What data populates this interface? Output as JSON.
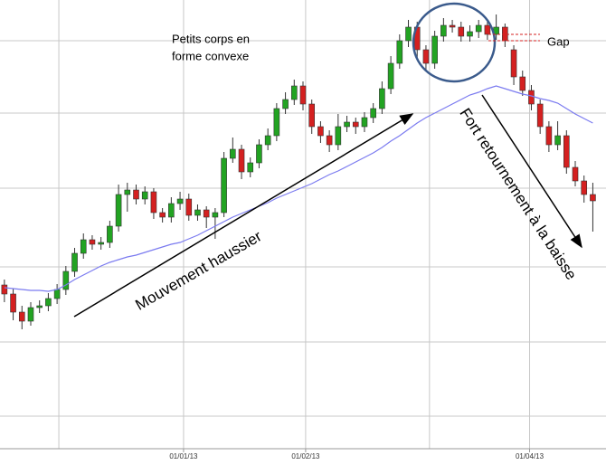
{
  "chart_data": {
    "type": "candlestick",
    "up_color": "#22a322",
    "down_color": "#d42020",
    "ma_color": "#7b7bf0",
    "xlim": [
      -0.5,
      68.5
    ],
    "ylim": [
      0,
      514
    ],
    "xticks": [
      {
        "value": 20.4,
        "label": "01/01/13"
      },
      {
        "value": 34.3,
        "label": "01/02/13"
      },
      {
        "value": 59.8,
        "label": "01/04/13"
      }
    ],
    "x_gridlines": [
      6.2,
      20.4,
      34.3,
      48.4,
      59.8
    ],
    "y_gridlines": [
      469,
      389,
      306,
      219,
      136,
      54
    ],
    "candles": [
      [
        199,
        205,
        180,
        189
      ],
      [
        189,
        195,
        160,
        169
      ],
      [
        169,
        176,
        150,
        159
      ],
      [
        159,
        180,
        154,
        174
      ],
      [
        174,
        182,
        168,
        176
      ],
      [
        176,
        190,
        170,
        184
      ],
      [
        184,
        200,
        178,
        194
      ],
      [
        194,
        220,
        188,
        214
      ],
      [
        214,
        240,
        208,
        234
      ],
      [
        234,
        256,
        228,
        249
      ],
      [
        249,
        254,
        238,
        244
      ],
      [
        244,
        252,
        238,
        246
      ],
      [
        246,
        270,
        240,
        264
      ],
      [
        264,
        310,
        258,
        299
      ],
      [
        299,
        312,
        280,
        304
      ],
      [
        304,
        310,
        288,
        294
      ],
      [
        294,
        308,
        288,
        302
      ],
      [
        302,
        306,
        272,
        279
      ],
      [
        279,
        284,
        268,
        274
      ],
      [
        274,
        296,
        268,
        289
      ],
      [
        289,
        302,
        282,
        294
      ],
      [
        294,
        300,
        270,
        276
      ],
      [
        276,
        288,
        270,
        282
      ],
      [
        282,
        286,
        262,
        274
      ],
      [
        274,
        284,
        250,
        279
      ],
      [
        279,
        346,
        274,
        339
      ],
      [
        339,
        362,
        334,
        349
      ],
      [
        349,
        354,
        316,
        324
      ],
      [
        324,
        340,
        318,
        334
      ],
      [
        334,
        360,
        328,
        354
      ],
      [
        354,
        372,
        348,
        364
      ],
      [
        364,
        400,
        358,
        394
      ],
      [
        394,
        412,
        388,
        404
      ],
      [
        404,
        426,
        398,
        419
      ],
      [
        419,
        424,
        392,
        399
      ],
      [
        399,
        404,
        366,
        374
      ],
      [
        374,
        380,
        356,
        364
      ],
      [
        364,
        370,
        346,
        354
      ],
      [
        354,
        388,
        348,
        374
      ],
      [
        374,
        386,
        368,
        379
      ],
      [
        379,
        384,
        366,
        374
      ],
      [
        374,
        390,
        368,
        384
      ],
      [
        384,
        400,
        378,
        394
      ],
      [
        394,
        424,
        388,
        416
      ],
      [
        416,
        452,
        410,
        444
      ],
      [
        444,
        476,
        438,
        469
      ],
      [
        469,
        492,
        462,
        484
      ],
      [
        484,
        490,
        450,
        459
      ],
      [
        459,
        464,
        436,
        444
      ],
      [
        444,
        480,
        438,
        474
      ],
      [
        474,
        494,
        468,
        486
      ],
      [
        486,
        492,
        478,
        484
      ],
      [
        484,
        490,
        468,
        474
      ],
      [
        474,
        486,
        468,
        479
      ],
      [
        479,
        492,
        472,
        486
      ],
      [
        486,
        490,
        470,
        476
      ],
      [
        476,
        498,
        470,
        484
      ],
      [
        484,
        488,
        462,
        469
      ],
      [
        459,
        464,
        420,
        429
      ],
      [
        429,
        436,
        408,
        414
      ],
      [
        414,
        420,
        392,
        399
      ],
      [
        399,
        404,
        366,
        374
      ],
      [
        374,
        380,
        346,
        354
      ],
      [
        354,
        380,
        348,
        364
      ],
      [
        364,
        370,
        322,
        329
      ],
      [
        329,
        336,
        308,
        314
      ],
      [
        314,
        320,
        290,
        299
      ],
      [
        299,
        312,
        258,
        292
      ]
    ],
    "moving_average": [
      196,
      195,
      194,
      193,
      193,
      192,
      194,
      199,
      205,
      210,
      215,
      220,
      224,
      227,
      230,
      232,
      235,
      238,
      241,
      244,
      246,
      250,
      254,
      259,
      264,
      269,
      274,
      278,
      282,
      286,
      290,
      295,
      299,
      303,
      307,
      311,
      316,
      321,
      325,
      330,
      335,
      340,
      345,
      351,
      358,
      364,
      371,
      378,
      384,
      389,
      394,
      399,
      404,
      409,
      412,
      416,
      419,
      416,
      413,
      410,
      408,
      405,
      403,
      400,
      394,
      388,
      383,
      378
    ],
    "annotations": {
      "small_bodies": [
        "Petits corps en",
        "forme convexe"
      ],
      "gap": "Gap",
      "uptrend": "Mouvement  haussier",
      "reversal": "Fort retournement à la baisse"
    }
  }
}
